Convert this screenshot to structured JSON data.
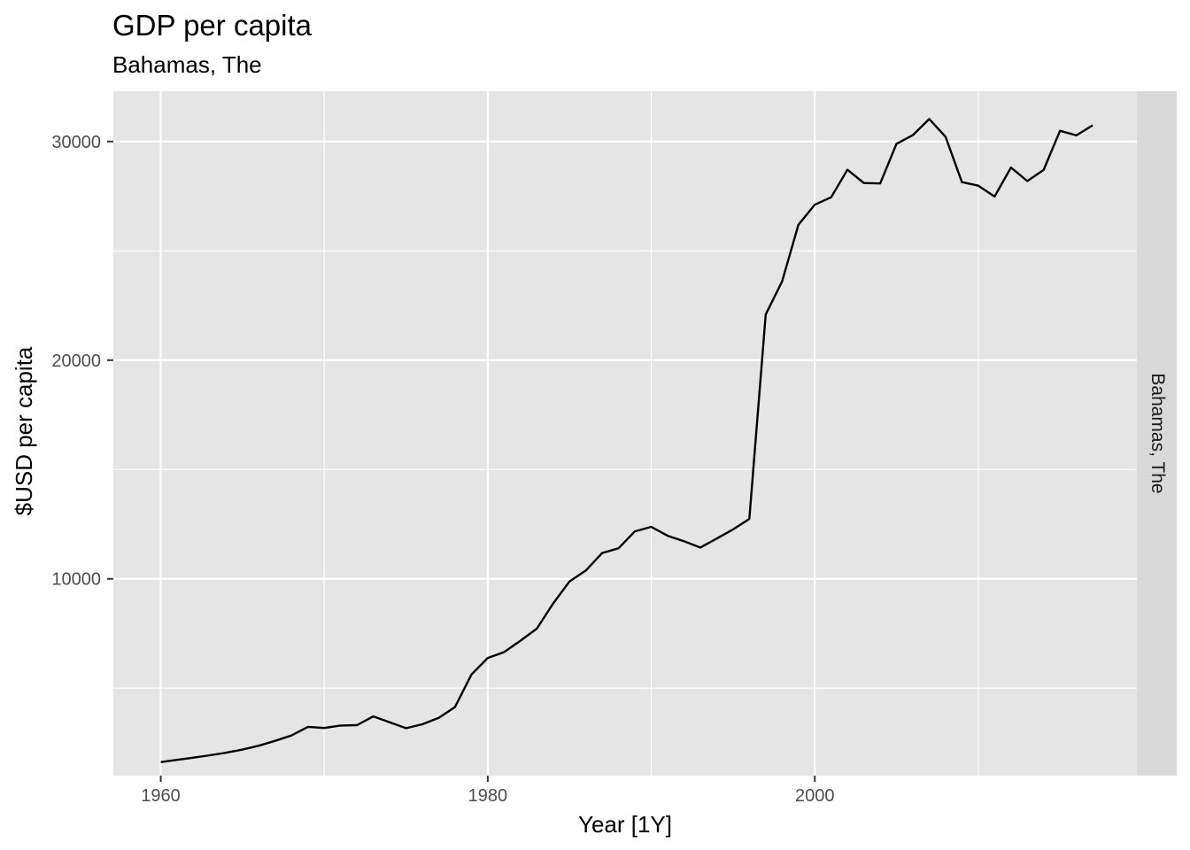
{
  "chart_data": {
    "type": "line",
    "title": "GDP per capita",
    "subtitle": "Bahamas, The",
    "xlabel": "Year [1Y]",
    "ylabel": "$USD per capita",
    "facet_label": "Bahamas, The",
    "xlim": [
      1957.1,
      2019.7
    ],
    "ylim": [
      1000,
      32300
    ],
    "x_ticks": [
      1960,
      1980,
      2000
    ],
    "x_minor": [
      1970,
      1990,
      2010
    ],
    "y_ticks": [
      10000,
      20000,
      30000
    ],
    "y_minor": [
      5000,
      15000,
      25000
    ],
    "grid": true,
    "colors": {
      "panel": "#e5e5e5",
      "grid": "#ffffff",
      "strip": "#d9d9d9",
      "line": "#000000"
    },
    "series": [
      {
        "x": [
          1960,
          1961,
          1962,
          1963,
          1964,
          1965,
          1966,
          1967,
          1968,
          1969,
          1970,
          1971,
          1972,
          1973,
          1974,
          1975,
          1976,
          1977,
          1978,
          1979,
          1980,
          1981,
          1982,
          1983,
          1984,
          1985,
          1986,
          1987,
          1988,
          1989,
          1990,
          1991,
          1992,
          1993,
          1994,
          1995,
          1996,
          1997,
          1998,
          1999,
          2000,
          2001,
          2002,
          2003,
          2004,
          2005,
          2006,
          2007,
          2008,
          2009,
          2010,
          2011,
          2012,
          2013,
          2014,
          2015,
          2016,
          2017
        ],
        "values": [
          1620,
          1720,
          1820,
          1930,
          2050,
          2190,
          2370,
          2590,
          2840,
          3230,
          3180,
          3290,
          3310,
          3710,
          3440,
          3170,
          3350,
          3640,
          4140,
          5620,
          6380,
          6650,
          7170,
          7720,
          8870,
          9880,
          10380,
          11180,
          11400,
          12170,
          12380,
          11970,
          11720,
          11430,
          11840,
          12260,
          12740,
          22090,
          23600,
          26190,
          27110,
          27450,
          28710,
          28100,
          28080,
          29890,
          30290,
          31030,
          30220,
          28140,
          27980,
          27480,
          28810,
          28190,
          28700,
          30490,
          30280,
          30740
        ]
      }
    ]
  }
}
